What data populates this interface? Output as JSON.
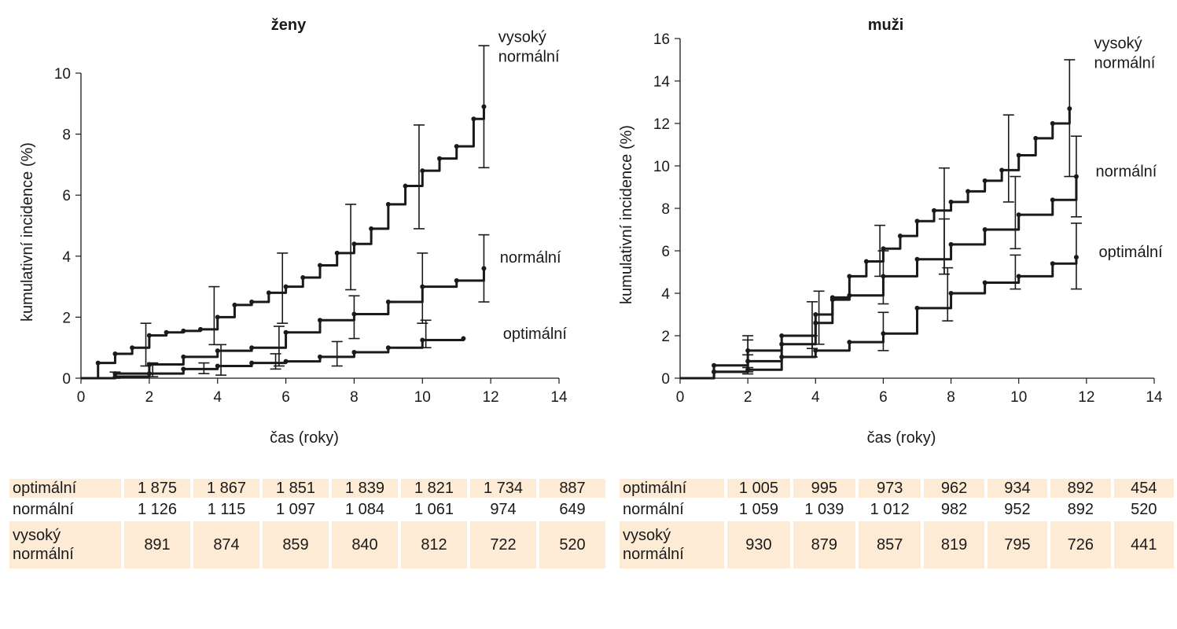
{
  "chart_data": [
    {
      "type": "line",
      "title": "ženy",
      "xlabel": "čas (roky)",
      "ylabel": "kumulativní incidence (%)",
      "xlim": [
        0,
        14
      ],
      "ylim": [
        0,
        10
      ],
      "xticks": [
        0,
        2,
        4,
        6,
        8,
        10,
        12,
        14
      ],
      "yticks": [
        0,
        2,
        4,
        6,
        8,
        10
      ],
      "grid": false,
      "legend": "inline labels at line ends",
      "series_labels": [
        {
          "key": "vysoky",
          "lines": [
            "vysoký",
            "normální"
          ]
        },
        {
          "key": "normalni",
          "lines": [
            "normální"
          ]
        },
        {
          "key": "optimalni",
          "lines": [
            "optimální"
          ]
        }
      ],
      "series": [
        {
          "key": "vysoky",
          "name": "vysoký normální",
          "x": [
            0,
            0.5,
            1,
            1.5,
            2,
            2.5,
            3,
            3.5,
            4,
            4.5,
            5,
            5.5,
            6,
            6.5,
            7,
            7.5,
            8,
            8.5,
            9,
            9.5,
            10,
            10.5,
            11,
            11.5,
            11.8
          ],
          "y": [
            0,
            0.5,
            0.8,
            1.0,
            1.4,
            1.5,
            1.55,
            1.6,
            2.0,
            2.4,
            2.5,
            2.8,
            3.0,
            3.3,
            3.7,
            4.1,
            4.4,
            4.9,
            5.7,
            6.3,
            6.8,
            7.2,
            7.6,
            8.5,
            8.9
          ],
          "errorbars": [
            {
              "x": 1.9,
              "lo": 0.4,
              "hi": 1.8
            },
            {
              "x": 3.9,
              "lo": 1.1,
              "hi": 3.0
            },
            {
              "x": 5.9,
              "lo": 1.8,
              "hi": 4.1
            },
            {
              "x": 7.9,
              "lo": 2.9,
              "hi": 5.7
            },
            {
              "x": 9.9,
              "lo": 4.9,
              "hi": 8.3
            },
            {
              "x": 11.8,
              "lo": 6.9,
              "hi": 10.9
            }
          ]
        },
        {
          "key": "normalni",
          "name": "normální",
          "x": [
            0,
            1,
            2,
            3,
            4,
            5,
            6,
            7,
            8,
            9,
            10,
            11,
            11.8
          ],
          "y": [
            0,
            0.15,
            0.45,
            0.7,
            0.9,
            1.0,
            1.5,
            1.9,
            2.1,
            2.5,
            3.0,
            3.2,
            3.6
          ],
          "errorbars": [
            {
              "x": 2.1,
              "lo": 0.05,
              "hi": 0.5
            },
            {
              "x": 4.1,
              "lo": 0.1,
              "hi": 1.1
            },
            {
              "x": 5.8,
              "lo": 0.4,
              "hi": 1.7
            },
            {
              "x": 8.0,
              "lo": 1.3,
              "hi": 2.7
            },
            {
              "x": 10.0,
              "lo": 1.8,
              "hi": 4.1
            },
            {
              "x": 11.8,
              "lo": 2.5,
              "hi": 4.7
            }
          ]
        },
        {
          "key": "optimalni",
          "name": "optimální",
          "x": [
            0,
            1,
            2,
            3,
            4,
            5,
            6,
            7,
            8,
            9,
            10,
            11.2
          ],
          "y": [
            0,
            0.05,
            0.15,
            0.3,
            0.4,
            0.5,
            0.55,
            0.7,
            0.85,
            1.0,
            1.25,
            1.3
          ],
          "errorbars": [
            {
              "x": 1.0,
              "lo": 0.0,
              "hi": 0.2
            },
            {
              "x": 3.6,
              "lo": 0.15,
              "hi": 0.5
            },
            {
              "x": 5.7,
              "lo": 0.3,
              "hi": 0.8
            },
            {
              "x": 7.5,
              "lo": 0.4,
              "hi": 1.2
            },
            {
              "x": 10.1,
              "lo": 1.0,
              "hi": 1.9
            }
          ]
        }
      ]
    },
    {
      "type": "line",
      "title": "muži",
      "xlabel": "čas (roky)",
      "ylabel": "kumulativní incidence (%)",
      "xlim": [
        0,
        14
      ],
      "ylim": [
        0,
        16
      ],
      "xticks": [
        0,
        2,
        4,
        6,
        8,
        10,
        12,
        14
      ],
      "yticks": [
        0,
        2,
        4,
        6,
        8,
        10,
        12,
        14,
        16
      ],
      "grid": false,
      "legend": "inline labels at line ends",
      "series_labels": [
        {
          "key": "vysoky",
          "lines": [
            "vysoký",
            "normální"
          ]
        },
        {
          "key": "normalni",
          "lines": [
            "normální"
          ]
        },
        {
          "key": "optimalni",
          "lines": [
            "optimální"
          ]
        }
      ],
      "series": [
        {
          "key": "vysoky",
          "name": "vysoký normální",
          "x": [
            0,
            1,
            2,
            3,
            4,
            4.5,
            5,
            5.5,
            6,
            6.5,
            7,
            7.5,
            8,
            8.5,
            9,
            9.5,
            10,
            10.5,
            11,
            11.5
          ],
          "y": [
            0,
            0.3,
            0.8,
            1.6,
            2.6,
            3.8,
            4.8,
            5.5,
            6.1,
            6.7,
            7.4,
            7.9,
            8.3,
            8.8,
            9.3,
            9.8,
            10.5,
            11.3,
            12.0,
            12.7
          ],
          "errorbars": [
            {
              "x": 2.0,
              "lo": 0.2,
              "hi": 2.0
            },
            {
              "x": 3.9,
              "lo": 1.4,
              "hi": 3.6
            },
            {
              "x": 5.9,
              "lo": 4.8,
              "hi": 7.2
            },
            {
              "x": 7.8,
              "lo": 4.9,
              "hi": 9.9
            },
            {
              "x": 9.7,
              "lo": 8.3,
              "hi": 12.4
            },
            {
              "x": 11.5,
              "lo": 9.5,
              "hi": 15.0
            }
          ]
        },
        {
          "key": "normalni",
          "name": "normální",
          "x": [
            0,
            1,
            2,
            3,
            4,
            4.5,
            5,
            6,
            7,
            8,
            9,
            10,
            11,
            11.7
          ],
          "y": [
            0,
            0.6,
            1.3,
            2.0,
            3.0,
            3.7,
            3.9,
            4.8,
            5.6,
            6.3,
            7.0,
            7.7,
            8.4,
            9.5
          ],
          "errorbars": [
            {
              "x": 2.0,
              "lo": 0.5,
              "hi": 1.8
            },
            {
              "x": 4.1,
              "lo": 1.6,
              "hi": 4.1
            },
            {
              "x": 6.0,
              "lo": 3.5,
              "hi": 6.0
            },
            {
              "x": 7.8,
              "lo": 4.9,
              "hi": 7.5
            },
            {
              "x": 9.9,
              "lo": 6.1,
              "hi": 9.5
            },
            {
              "x": 11.7,
              "lo": 7.6,
              "hi": 11.4
            }
          ]
        },
        {
          "key": "optimalni",
          "name": "optimální",
          "x": [
            0,
            1,
            2,
            3,
            4,
            5,
            6,
            7,
            8,
            9,
            10,
            11,
            11.7
          ],
          "y": [
            0,
            0.3,
            0.4,
            1.0,
            1.3,
            1.7,
            2.1,
            3.3,
            4.0,
            4.5,
            4.8,
            5.4,
            5.7
          ],
          "errorbars": [
            {
              "x": 2.0,
              "lo": 0.3,
              "hi": 1.1
            },
            {
              "x": 3.9,
              "lo": 1.0,
              "hi": 2.0
            },
            {
              "x": 6.0,
              "lo": 1.3,
              "hi": 3.1
            },
            {
              "x": 7.9,
              "lo": 2.7,
              "hi": 5.2
            },
            {
              "x": 9.9,
              "lo": 4.2,
              "hi": 5.8
            },
            {
              "x": 11.7,
              "lo": 4.2,
              "hi": 7.3
            }
          ]
        }
      ]
    }
  ],
  "tables": {
    "zeny": {
      "rows": [
        {
          "label": [
            "optimální"
          ],
          "values": [
            "1 875",
            "1 867",
            "1 851",
            "1 839",
            "1 821",
            "1 734",
            "887"
          ],
          "shaded": true
        },
        {
          "label": [
            "normální"
          ],
          "values": [
            "1 126",
            "1 115",
            "1 097",
            "1 084",
            "1 061",
            "974",
            "649"
          ],
          "shaded": false
        },
        {
          "label": [
            "vysoký",
            "normální"
          ],
          "values": [
            "891",
            "874",
            "859",
            "840",
            "812",
            "722",
            "520"
          ],
          "shaded": true
        }
      ]
    },
    "muzi": {
      "rows": [
        {
          "label": [
            "optimální"
          ],
          "values": [
            "1 005",
            "995",
            "973",
            "962",
            "934",
            "892",
            "454"
          ],
          "shaded": true
        },
        {
          "label": [
            "normální"
          ],
          "values": [
            "1 059",
            "1 039",
            "1 012",
            "982",
            "952",
            "892",
            "520"
          ],
          "shaded": false
        },
        {
          "label": [
            "vysoký",
            "normální"
          ],
          "values": [
            "930",
            "879",
            "857",
            "819",
            "795",
            "726",
            "441"
          ],
          "shaded": true
        }
      ]
    }
  },
  "colors": {
    "line": "#1a1a1a",
    "table_shade": "#fdebd6"
  }
}
